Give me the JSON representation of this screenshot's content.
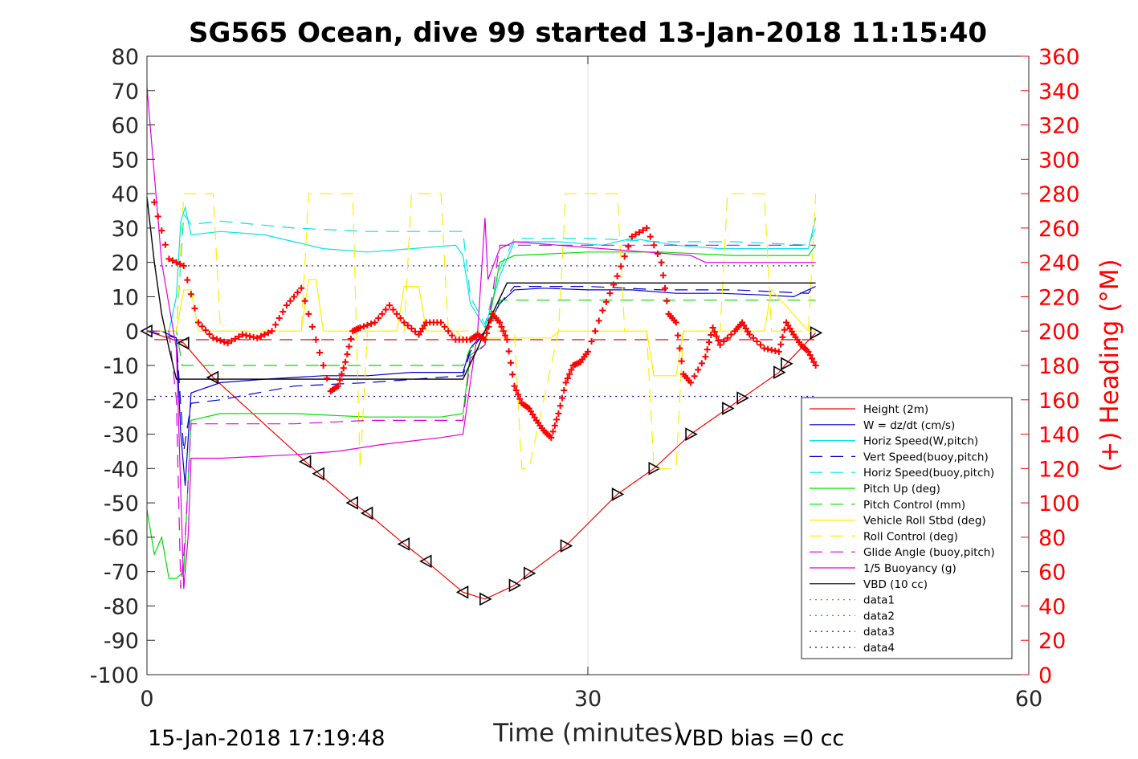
{
  "chart_data": {
    "type": "line",
    "title": "SG565 Ocean, dive 99 started 13-Jan-2018 11:15:40",
    "xlabel": "Time (minutes)",
    "ylabel": "",
    "y2label": "(+) Heading (°M)",
    "xlim": [
      0,
      60
    ],
    "ylim": [
      -100,
      80
    ],
    "y2lim": [
      0,
      360
    ],
    "xticks": [
      "0",
      "30",
      "60"
    ],
    "yticks": [
      "80",
      "70",
      "60",
      "50",
      "40",
      "30",
      "20",
      "10",
      "0",
      "-10",
      "-20",
      "-30",
      "-40",
      "-50",
      "-60",
      "-70",
      "-80",
      "-90",
      "-100"
    ],
    "y2ticks": [
      "360",
      "340",
      "320",
      "300",
      "280",
      "260",
      "240",
      "220",
      "200",
      "180",
      "160",
      "140",
      "120",
      "100",
      "80",
      "60",
      "40",
      "20",
      "0"
    ],
    "grid": "x-only",
    "legend_position": "lower-right",
    "footer_left": "15-Jan-2018 17:19:48",
    "footer_right": "VBD bias =0 cc",
    "colors": {
      "red": "#ff0000",
      "blue": "#0000cc",
      "cyan": "#00e5e5",
      "green": "#00dd00",
      "yellow": "#ffee00",
      "magenta": "#dd00dd",
      "black": "#000000"
    },
    "series": [
      {
        "name": "Height (2m)",
        "color": "#ff0000",
        "dash": "solid",
        "marker": "triangle",
        "x": [
          0,
          2.5,
          4.5,
          10.8,
          11.7,
          14,
          15,
          17.5,
          19,
          21.5,
          23,
          25,
          26,
          28.5,
          32,
          34.5,
          37,
          39.5,
          40.5,
          43,
          43.5,
          45.5
        ],
        "y": [
          0,
          -3.5,
          -13.5,
          -38,
          -41.5,
          -50,
          -53,
          -62,
          -67,
          -76,
          -78,
          -74,
          -70.5,
          -62.5,
          -47.5,
          -40,
          -30,
          -22.5,
          -19.5,
          -12,
          -9.5,
          -0.5
        ]
      },
      {
        "name": "W = dz/dt (cm/s)",
        "color": "#0000cc",
        "dash": "solid",
        "x": [
          0,
          1,
          2,
          2.3,
          2.6,
          3,
          5,
          8,
          12,
          15,
          18,
          21.5,
          22,
          23,
          24,
          25,
          27,
          30,
          33,
          36,
          39,
          42,
          44,
          45.5
        ],
        "y": [
          0,
          0,
          -2,
          -30,
          -45,
          -18,
          -15,
          -14,
          -13,
          -13,
          -12,
          -12,
          -5,
          0,
          8,
          12,
          12.5,
          12,
          12,
          11,
          11,
          10.5,
          10,
          13
        ]
      },
      {
        "name": "Horiz Speed(W,pitch)",
        "color": "#00e5e5",
        "dash": "solid",
        "x": [
          0,
          1.5,
          2,
          2.3,
          2.6,
          3,
          5,
          8,
          10,
          12,
          15,
          18,
          21,
          21.5,
          22,
          23,
          24,
          25,
          28,
          31,
          33,
          36,
          39,
          42,
          45,
          45.5
        ],
        "y": [
          0,
          0,
          10,
          32,
          36,
          28,
          29,
          28,
          26,
          24,
          23,
          24,
          25,
          22,
          8,
          1,
          16,
          26,
          26,
          25,
          27,
          25,
          24,
          24,
          24,
          33
        ]
      },
      {
        "name": "Vert Speed(buoy,pitch)",
        "color": "#0000cc",
        "dash": "dashed",
        "x": [
          0,
          2,
          2.5,
          3,
          5,
          10,
          15,
          21.5,
          22,
          23,
          24,
          25,
          30,
          35,
          40,
          45,
          45.5
        ],
        "y": [
          0,
          -2,
          -35,
          -21,
          -20,
          -16,
          -15,
          -13,
          -6,
          0,
          8,
          13,
          13,
          12,
          12,
          11,
          14
        ]
      },
      {
        "name": "Horiz Speed(buoy,pitch)",
        "color": "#00e5e5",
        "dash": "dashed",
        "x": [
          0,
          2,
          2.5,
          3,
          5,
          10,
          15,
          21.5,
          22,
          23,
          24,
          25,
          30,
          35,
          40,
          45,
          45.5
        ],
        "y": [
          0,
          0,
          34,
          31,
          32,
          30,
          29,
          29,
          10,
          2,
          18,
          27,
          27,
          26,
          26,
          25,
          30
        ]
      },
      {
        "name": "Pitch Up (deg)",
        "color": "#00dd00",
        "dash": "solid",
        "x": [
          0,
          0.5,
          1,
          1.5,
          2,
          2.5,
          3,
          5,
          10,
          15,
          20,
          21.5,
          22,
          23,
          24,
          25,
          30,
          35,
          40,
          45,
          45.5
        ],
        "y": [
          -52,
          -65,
          -60,
          -72,
          -72,
          -70,
          -26,
          -24,
          -24,
          -25,
          -25,
          -24,
          -7,
          -4,
          20,
          22,
          23,
          23,
          22,
          22,
          25
        ]
      },
      {
        "name": "Pitch Control (mm)",
        "color": "#00dd00",
        "dash": "dashed",
        "x": [
          0,
          2,
          2.4,
          3,
          10,
          15,
          21.5,
          22,
          23,
          24,
          25,
          30,
          35,
          40,
          45,
          45.5
        ],
        "y": [
          0,
          0,
          -10,
          -10,
          -10,
          -10,
          -10,
          -5,
          -2,
          9,
          9,
          9,
          9,
          9,
          9,
          9
        ]
      },
      {
        "name": "Vehicle Roll Stbd (deg)",
        "color": "#ffee00",
        "dash": "solid",
        "x": [
          0,
          2,
          2.5,
          3,
          3.5,
          4,
          7,
          10.5,
          11,
          11.5,
          12,
          15,
          17,
          17.5,
          18.5,
          19,
          21,
          21.5,
          23,
          25,
          27.5,
          28,
          30,
          34,
          34.5,
          36,
          36.5,
          39,
          40,
          42,
          42.5,
          45,
          45.5
        ],
        "y": [
          0,
          0,
          12,
          12,
          0,
          0,
          0,
          0,
          15,
          15,
          0,
          0,
          0,
          13,
          13,
          0,
          0,
          -2,
          -2,
          -2,
          -2,
          0,
          0,
          0,
          -13,
          -13,
          0,
          0,
          0,
          0,
          12,
          0,
          0
        ]
      },
      {
        "name": "Roll Control (deg)",
        "color": "#ffee00",
        "dash": "dashed",
        "x": [
          0,
          2,
          2.5,
          4.5,
          5,
          10.5,
          11,
          14,
          14.5,
          15,
          17.5,
          18,
          20,
          20.5,
          25,
          25.5,
          26,
          28,
          28.5,
          32,
          32.5,
          34,
          34.5,
          36,
          36.5,
          39,
          39.5,
          42,
          42.5,
          45,
          45.5
        ],
        "y": [
          0,
          0,
          40,
          40,
          0,
          0,
          40,
          40,
          -40,
          0,
          0,
          40,
          40,
          0,
          0,
          -40,
          -40,
          0,
          40,
          40,
          0,
          0,
          -40,
          -40,
          0,
          0,
          40,
          40,
          0,
          0,
          40
        ]
      },
      {
        "name": "Glide Angle (buoy,pitch)",
        "color": "#dd00dd",
        "dash": "dashed",
        "x": [
          0,
          1.5,
          2,
          2.3,
          2.6,
          3,
          5,
          10,
          15,
          21.5,
          22,
          23,
          24,
          25,
          30,
          35,
          40,
          45,
          45.5
        ],
        "y": [
          0,
          0,
          -20,
          -75,
          -60,
          -27,
          -27,
          -27,
          -26,
          -26,
          -8,
          -4,
          25,
          25,
          25,
          25,
          25,
          25,
          25
        ]
      },
      {
        "name": "1/5 Buoyancy (g)",
        "color": "#dd00dd",
        "dash": "solid",
        "x": [
          0,
          1,
          2,
          2.5,
          2.8,
          3,
          5,
          10,
          13,
          16,
          20,
          21.5,
          22.5,
          23,
          23.2,
          24,
          25,
          28,
          31,
          34,
          37,
          38,
          40,
          45,
          45.5
        ],
        "y": [
          71,
          20,
          -5,
          -75,
          -60,
          -37,
          -37,
          -36,
          -35,
          -33,
          -31,
          -30,
          0,
          33,
          15,
          24,
          26,
          25,
          24,
          23,
          22,
          20,
          20,
          20,
          20
        ]
      },
      {
        "name": "VBD (10 cc)",
        "color": "#000000",
        "dash": "solid",
        "x": [
          0,
          0.5,
          1,
          1.5,
          2,
          2.3,
          21.5,
          22.5,
          23.5,
          24.5,
          45.5
        ],
        "y": [
          39,
          20,
          5,
          -5,
          -14,
          -14,
          -14,
          -5,
          5,
          14,
          14
        ]
      },
      {
        "name": "data1",
        "color": "#00dd00",
        "dash": "dotted",
        "x": [],
        "y": []
      },
      {
        "name": "data2",
        "color": "#00dd00",
        "dash": "dotted",
        "x": [],
        "y": []
      },
      {
        "name": "data3",
        "color": "#0000cc",
        "dash": "dotted",
        "x": [],
        "y": []
      },
      {
        "name": "data4",
        "color": "#0000cc",
        "dash": "dotted",
        "x": [],
        "y": []
      }
    ],
    "reference_lines": [
      {
        "y": 19,
        "color": "#0000cc",
        "dash": "dotted",
        "x_range": [
          0.5,
          45.5
        ]
      },
      {
        "y": -19,
        "color": "#0000cc",
        "dash": "dotted",
        "x_range": [
          0.5,
          45.5
        ]
      },
      {
        "y": -2.5,
        "color": "#cc0000",
        "dash": "dashed",
        "x_range": [
          0.5,
          45.5
        ]
      }
    ],
    "heading_series": {
      "name": "(+) Heading (°M)",
      "color": "#ff0000",
      "marker": "plus",
      "axis": "right",
      "x": [
        0.5,
        1.5,
        2.5,
        3.5,
        4.5,
        5.5,
        6.5,
        7.5,
        8.5,
        9.5,
        10.5,
        11.5,
        12.5,
        13,
        13.5,
        14,
        14.5,
        15.5,
        16.5,
        17.5,
        18.5,
        19,
        20,
        21,
        22,
        22.5,
        23,
        23.5,
        24,
        24.5,
        25,
        25.5,
        26,
        26.5,
        27,
        27.5,
        28,
        28.5,
        29,
        29.5,
        30,
        31,
        32,
        33,
        34,
        35,
        35.5,
        36,
        36.5,
        37,
        38,
        38.5,
        39,
        40,
        40.5,
        41,
        42,
        43,
        43.5,
        44,
        44.5,
        45,
        45.5
      ],
      "y": [
        275,
        242,
        238,
        205,
        196,
        193,
        198,
        196,
        200,
        215,
        225,
        195,
        165,
        168,
        182,
        200,
        202,
        205,
        215,
        205,
        198,
        205,
        205,
        195,
        195,
        198,
        195,
        210,
        205,
        195,
        168,
        158,
        155,
        148,
        142,
        138,
        152,
        170,
        180,
        182,
        188,
        212,
        232,
        255,
        260,
        240,
        210,
        205,
        175,
        170,
        185,
        202,
        192,
        200,
        205,
        198,
        190,
        188,
        205,
        198,
        192,
        188,
        180
      ]
    }
  }
}
